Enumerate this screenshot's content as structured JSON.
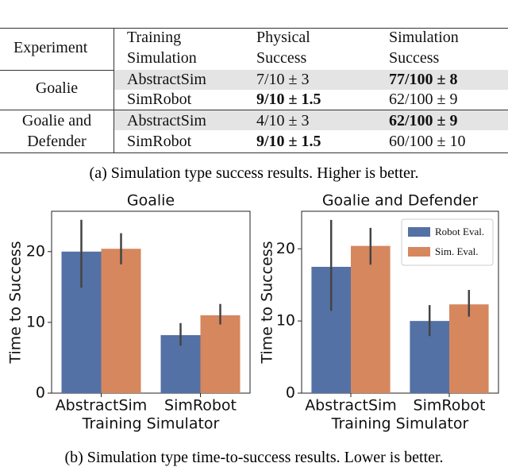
{
  "table": {
    "header": [
      "Experiment",
      "Training\nSimulation",
      "Physical\nSuccess",
      "Simulation\nSuccess"
    ],
    "groups": [
      {
        "name": "Goalie",
        "rows": [
          [
            "AbstractSim",
            "7/10 ± 3",
            "77/100 ± 8"
          ],
          [
            "SimRobot",
            "9/10 ± 1.5",
            "62/100 ± 9"
          ]
        ]
      },
      {
        "name": "Goalie and\nDefender",
        "rows": [
          [
            "AbstractSim",
            "4/10 ± 3",
            "62/100 ± 9"
          ],
          [
            "SimRobot",
            "9/10 ± 1.5",
            "60/100 ± 10"
          ]
        ]
      }
    ]
  },
  "caption_a": "(a) Simulation type success results. Higher is better.",
  "chart_data": [
    {
      "type": "bar",
      "title": "Goalie",
      "x_label": "Training Simulator",
      "y_label": "Time to Success",
      "categories": [
        "AbstractSim",
        "SimRobot"
      ],
      "series": [
        {
          "color": "#5471a6",
          "values": [
            20,
            8.2
          ],
          "lower": [
            14.9,
            6.7
          ],
          "upper": [
            24.5,
            9.9
          ]
        },
        {
          "color": "#d6875e",
          "values": [
            20.4,
            11
          ],
          "lower": [
            18.2,
            9.7
          ],
          "upper": [
            22.6,
            12.6
          ]
        }
      ],
      "ylim": [
        0,
        25.7
      ],
      "yticks": [
        0,
        10,
        20
      ]
    },
    {
      "type": "bar",
      "title": "Goalie and Defender",
      "x_label": "Training Simulator",
      "y_label": "Time to Success",
      "categories": [
        "AbstractSim",
        "SimRobot"
      ],
      "series": [
        {
          "name": "Robot Eval.",
          "color": "#5471a6",
          "values": [
            17.5,
            10
          ],
          "lower": [
            11.4,
            7.9
          ],
          "upper": [
            24,
            12.2
          ]
        },
        {
          "name": "Sim. Eval.",
          "color": "#d6875e",
          "values": [
            20.4,
            12.3
          ],
          "lower": [
            17.8,
            10.6
          ],
          "upper": [
            22.9,
            14.3
          ]
        }
      ],
      "ylim": [
        0,
        25.2
      ],
      "yticks": [
        0,
        10,
        20
      ],
      "legend": "upper right"
    }
  ],
  "caption_b": "(b) Simulation type time-to-success results. Lower is better."
}
